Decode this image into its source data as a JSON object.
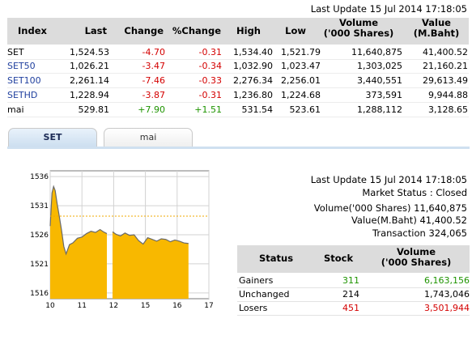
{
  "top_last_update": "Last Update 15 Jul 2014 17:18:05",
  "columns": {
    "index": "Index",
    "last": "Last",
    "change": "Change",
    "pct_change": "%Change",
    "high": "High",
    "low": "Low",
    "volume_1": "Volume",
    "volume_2": "('000 Shares)",
    "value_1": "Value",
    "value_2": "(M.Baht)"
  },
  "rows": [
    {
      "index": "SET",
      "last": "1,524.53",
      "change": "-4.70",
      "pct_change": "-0.31",
      "high": "1,534.40",
      "low": "1,521.79",
      "volume": "11,640,875",
      "value": "41,400.52",
      "is_link": false
    },
    {
      "index": "SET50",
      "last": "1,026.21",
      "change": "-3.47",
      "pct_change": "-0.34",
      "high": "1,032.90",
      "low": "1,023.47",
      "volume": "1,303,025",
      "value": "21,160.21",
      "is_link": true
    },
    {
      "index": "SET100",
      "last": "2,261.14",
      "change": "-7.46",
      "pct_change": "-0.33",
      "high": "2,276.34",
      "low": "2,256.01",
      "volume": "3,440,551",
      "value": "29,613.49",
      "is_link": true
    },
    {
      "index": "SETHD",
      "last": "1,228.94",
      "change": "-3.87",
      "pct_change": "-0.31",
      "high": "1,236.80",
      "low": "1,224.68",
      "volume": "373,591",
      "value": "9,944.88",
      "is_link": true
    },
    {
      "index": "mai",
      "last": "529.81",
      "change": "+7.90",
      "pct_change": "+1.51",
      "high": "531.54",
      "low": "523.61",
      "volume": "1,288,112",
      "value": "3,128.65",
      "is_link": false
    }
  ],
  "tabs": [
    {
      "label": "SET",
      "active": true
    },
    {
      "label": "mai",
      "active": false
    }
  ],
  "info": {
    "last_update": "Last Update 15 Jul 2014 17:18:05",
    "market_status": "Market Status : Closed",
    "volume": "Volume('000 Shares) 11,640,875",
    "value": "Value(M.Baht) 41,400.52",
    "transaction": "Transaction 324,065"
  },
  "status_table": {
    "headers": {
      "status": "Status",
      "stock": "Stock",
      "volume_1": "Volume",
      "volume_2": "('000 Shares)"
    },
    "rows": [
      {
        "status": "Gainers",
        "stock": "311",
        "volume": "6,163,156",
        "color": "#1e9400"
      },
      {
        "status": "Unchanged",
        "stock": "214",
        "volume": "1,743,046",
        "color": "#000000"
      },
      {
        "status": "Losers",
        "stock": "451",
        "volume": "3,501,944",
        "color": "#d40000"
      }
    ]
  },
  "colors": {
    "up": "#1e9400",
    "down": "#d40000",
    "link": "#1f3f9e",
    "area_fill": "#f8b800",
    "area_line": "#6a6a6a",
    "prev_close_line": "#f2a900"
  },
  "chart_data": {
    "type": "area",
    "title": "",
    "xlabel": "",
    "ylabel": "",
    "ylim": [
      1515,
      1537
    ],
    "xlim": [
      10,
      17
    ],
    "y_ticks": [
      1516,
      1521,
      1526,
      1531,
      1536
    ],
    "x_ticks": [
      "10",
      "11",
      "12",
      "15",
      "16",
      "17"
    ],
    "prev_close": 1529.2,
    "series": [
      {
        "name": "",
        "sessions": [
          {
            "x": [
              10.0,
              10.08,
              10.15,
              10.22,
              10.3,
              10.4,
              10.5,
              10.6,
              10.7,
              10.85,
              11.0,
              11.2,
              11.4,
              11.6,
              11.8,
              12.0,
              12.2,
              12.35,
              12.5
            ],
            "y": [
              1527.5,
              1533.2,
              1534.3,
              1533.6,
              1531.5,
              1529.2,
              1526.8,
              1524.0,
              1522.7,
              1524.3,
              1524.6,
              1525.4,
              1525.6,
              1526.2,
              1526.6,
              1526.4,
              1526.9,
              1526.5,
              1526.2
            ]
          },
          {
            "x": [
              12.75,
              12.9,
              13.1,
              13.3,
              13.5,
              13.7,
              13.9,
              14.1,
              14.3,
              14.5,
              14.7,
              14.9,
              15.1,
              15.3,
              15.5,
              15.7,
              15.9,
              16.1
            ],
            "y": [
              1526.5,
              1526.1,
              1525.8,
              1526.3,
              1525.9,
              1526.0,
              1525.0,
              1524.4,
              1525.5,
              1525.2,
              1524.9,
              1525.3,
              1525.2,
              1524.8,
              1525.1,
              1524.9,
              1524.6,
              1524.5
            ]
          }
        ]
      }
    ]
  }
}
